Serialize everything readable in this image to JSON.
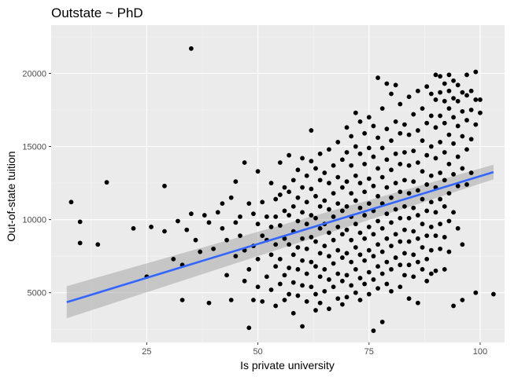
{
  "chart_data": {
    "type": "scatter",
    "title": "Outstate ~ PhD",
    "xlabel": "Is private university",
    "ylabel": "Out-of-state tuition",
    "xlim": [
      3.5,
      105.5
    ],
    "ylim": [
      1600,
      23300
    ],
    "x_ticks": [
      25,
      50,
      75,
      100
    ],
    "y_ticks": [
      5000,
      10000,
      15000,
      20000
    ],
    "x_tick_labels": [
      "25",
      "50",
      "75",
      "100"
    ],
    "y_tick_labels": [
      "5000",
      "10000",
      "15000",
      "20000"
    ],
    "grid": true,
    "legend": "none",
    "colors": {
      "panel": "#EBEBEB",
      "grid_major": "#FFFFFF",
      "grid_minor": "#F5F5F5",
      "points": "#000000",
      "fit_line": "#3366FF",
      "ribbon": "#999999"
    },
    "points": [
      [
        8,
        11200
      ],
      [
        10,
        9850
      ],
      [
        10,
        8400
      ],
      [
        14,
        8300
      ],
      [
        16,
        12550
      ],
      [
        22,
        9400
      ],
      [
        25,
        6100
      ],
      [
        26,
        9500
      ],
      [
        29,
        12300
      ],
      [
        29,
        9200
      ],
      [
        31,
        7300
      ],
      [
        32,
        9900
      ],
      [
        33,
        6900
      ],
      [
        33,
        4500
      ],
      [
        34,
        9300
      ],
      [
        35,
        21700
      ],
      [
        35,
        10400
      ],
      [
        36,
        8600
      ],
      [
        37,
        7800
      ],
      [
        38,
        10300
      ],
      [
        39,
        9800
      ],
      [
        39,
        4300
      ],
      [
        40,
        8000
      ],
      [
        41,
        10500
      ],
      [
        42,
        9400
      ],
      [
        42,
        11100
      ],
      [
        43,
        6200
      ],
      [
        43,
        8600
      ],
      [
        44,
        4500
      ],
      [
        44,
        11500
      ],
      [
        45,
        9800
      ],
      [
        45,
        7500
      ],
      [
        45,
        12600
      ],
      [
        46,
        10200
      ],
      [
        46,
        8900
      ],
      [
        47,
        13900
      ],
      [
        47,
        7900
      ],
      [
        47,
        5800
      ],
      [
        48,
        11100
      ],
      [
        48,
        6600
      ],
      [
        48,
        2600
      ],
      [
        49,
        10400
      ],
      [
        49,
        8200
      ],
      [
        49,
        4500
      ],
      [
        50,
        13300
      ],
      [
        50,
        9700
      ],
      [
        50,
        7300
      ],
      [
        50,
        5400
      ],
      [
        51,
        11200
      ],
      [
        51,
        8900
      ],
      [
        51,
        4400
      ],
      [
        52,
        10200
      ],
      [
        52,
        8600
      ],
      [
        52,
        6100
      ],
      [
        53,
        12500
      ],
      [
        53,
        9500
      ],
      [
        53,
        7600
      ],
      [
        53,
        5200
      ],
      [
        54,
        11400
      ],
      [
        54,
        10200
      ],
      [
        54,
        8300
      ],
      [
        54,
        6800
      ],
      [
        54,
        4100
      ],
      [
        55,
        13900
      ],
      [
        55,
        11700
      ],
      [
        55,
        9600
      ],
      [
        55,
        7300
      ],
      [
        55,
        5600
      ],
      [
        56,
        12200
      ],
      [
        56,
        10600
      ],
      [
        56,
        8700
      ],
      [
        56,
        6200
      ],
      [
        56,
        4500
      ],
      [
        57,
        14400
      ],
      [
        57,
        11900
      ],
      [
        57,
        10300
      ],
      [
        57,
        8300
      ],
      [
        57,
        6700
      ],
      [
        57,
        4900
      ],
      [
        58,
        12700
      ],
      [
        58,
        10900
      ],
      [
        58,
        9200
      ],
      [
        58,
        7600
      ],
      [
        58,
        5700
      ],
      [
        58,
        3600
      ],
      [
        59,
        13400
      ],
      [
        59,
        11500
      ],
      [
        59,
        9900
      ],
      [
        59,
        8100
      ],
      [
        59,
        6600
      ],
      [
        59,
        4800
      ],
      [
        60,
        14200
      ],
      [
        60,
        12200
      ],
      [
        60,
        10500
      ],
      [
        60,
        8700
      ],
      [
        60,
        7200
      ],
      [
        60,
        5500
      ],
      [
        60,
        2700
      ],
      [
        61,
        13000
      ],
      [
        61,
        11200
      ],
      [
        61,
        9700
      ],
      [
        61,
        8000
      ],
      [
        61,
        6300
      ],
      [
        61,
        4400
      ],
      [
        62,
        16100
      ],
      [
        62,
        14000
      ],
      [
        62,
        12100
      ],
      [
        62,
        10300
      ],
      [
        62,
        8800
      ],
      [
        62,
        7100
      ],
      [
        62,
        5400
      ],
      [
        63,
        13500
      ],
      [
        63,
        11600
      ],
      [
        63,
        10100
      ],
      [
        63,
        8500
      ],
      [
        63,
        6800
      ],
      [
        63,
        4900
      ],
      [
        63,
        3800
      ],
      [
        64,
        14500
      ],
      [
        64,
        12700
      ],
      [
        64,
        10900
      ],
      [
        64,
        9400
      ],
      [
        64,
        7700
      ],
      [
        64,
        6100
      ],
      [
        64,
        4300
      ],
      [
        65,
        13200
      ],
      [
        65,
        11300
      ],
      [
        65,
        9700
      ],
      [
        65,
        8200
      ],
      [
        65,
        6600
      ],
      [
        65,
        5100
      ],
      [
        66,
        14800
      ],
      [
        66,
        12500
      ],
      [
        66,
        10700
      ],
      [
        66,
        9100
      ],
      [
        66,
        7500
      ],
      [
        66,
        5900
      ],
      [
        66,
        3900
      ],
      [
        67,
        13700
      ],
      [
        67,
        11800
      ],
      [
        67,
        10200
      ],
      [
        67,
        8600
      ],
      [
        67,
        7000
      ],
      [
        67,
        5400
      ],
      [
        68,
        15300
      ],
      [
        68,
        12900
      ],
      [
        68,
        11100
      ],
      [
        68,
        9500
      ],
      [
        68,
        7900
      ],
      [
        68,
        6300
      ],
      [
        68,
        4600
      ],
      [
        69,
        14100
      ],
      [
        69,
        12200
      ],
      [
        69,
        10600
      ],
      [
        69,
        9000
      ],
      [
        69,
        7400
      ],
      [
        69,
        5800
      ],
      [
        69,
        4200
      ],
      [
        70,
        16300
      ],
      [
        70,
        14600
      ],
      [
        70,
        12600
      ],
      [
        70,
        10900
      ],
      [
        70,
        9300
      ],
      [
        70,
        7700
      ],
      [
        70,
        6200
      ],
      [
        70,
        4700
      ],
      [
        71,
        15700
      ],
      [
        71,
        13700
      ],
      [
        71,
        11800
      ],
      [
        71,
        10200
      ],
      [
        71,
        8600
      ],
      [
        71,
        7100
      ],
      [
        71,
        5500
      ],
      [
        72,
        17300
      ],
      [
        72,
        15000
      ],
      [
        72,
        13000
      ],
      [
        72,
        11300
      ],
      [
        72,
        9700
      ],
      [
        72,
        8100
      ],
      [
        72,
        6600
      ],
      [
        72,
        5000
      ],
      [
        73,
        16700
      ],
      [
        73,
        14500
      ],
      [
        73,
        12500
      ],
      [
        73,
        10800
      ],
      [
        73,
        9100
      ],
      [
        73,
        7600
      ],
      [
        73,
        6000
      ],
      [
        73,
        4500
      ],
      [
        74,
        15900
      ],
      [
        74,
        13800
      ],
      [
        74,
        11900
      ],
      [
        74,
        10300
      ],
      [
        74,
        8700
      ],
      [
        74,
        7200
      ],
      [
        74,
        5600
      ],
      [
        75,
        17000
      ],
      [
        75,
        14900
      ],
      [
        75,
        12800
      ],
      [
        75,
        11100
      ],
      [
        75,
        9500
      ],
      [
        75,
        7900
      ],
      [
        75,
        6400
      ],
      [
        75,
        4900
      ],
      [
        76,
        16400
      ],
      [
        76,
        14300
      ],
      [
        76,
        12300
      ],
      [
        76,
        10600
      ],
      [
        76,
        9000
      ],
      [
        76,
        7500
      ],
      [
        76,
        5900
      ],
      [
        76,
        2400
      ],
      [
        77,
        19700
      ],
      [
        77,
        15600
      ],
      [
        77,
        13500
      ],
      [
        77,
        11600
      ],
      [
        77,
        9900
      ],
      [
        77,
        8300
      ],
      [
        77,
        6800
      ],
      [
        77,
        5300
      ],
      [
        78,
        17600
      ],
      [
        78,
        14900
      ],
      [
        78,
        12900
      ],
      [
        78,
        11100
      ],
      [
        78,
        9400
      ],
      [
        78,
        7800
      ],
      [
        78,
        6300
      ],
      [
        78,
        3000
      ],
      [
        79,
        19300
      ],
      [
        79,
        16200
      ],
      [
        79,
        14100
      ],
      [
        79,
        12200
      ],
      [
        79,
        10400
      ],
      [
        79,
        8700
      ],
      [
        79,
        7100
      ],
      [
        79,
        5600
      ],
      [
        80,
        18600
      ],
      [
        80,
        15400
      ],
      [
        80,
        13400
      ],
      [
        80,
        11500
      ],
      [
        80,
        9800
      ],
      [
        80,
        8200
      ],
      [
        80,
        6600
      ],
      [
        80,
        5100
      ],
      [
        81,
        19200
      ],
      [
        81,
        16700
      ],
      [
        81,
        14500
      ],
      [
        81,
        12500
      ],
      [
        81,
        10700
      ],
      [
        81,
        9000
      ],
      [
        81,
        7400
      ],
      [
        82,
        17900
      ],
      [
        82,
        15900
      ],
      [
        82,
        13800
      ],
      [
        82,
        11900
      ],
      [
        82,
        10100
      ],
      [
        82,
        8500
      ],
      [
        82,
        6900
      ],
      [
        82,
        5400
      ],
      [
        83,
        16500
      ],
      [
        83,
        14600
      ],
      [
        83,
        12700
      ],
      [
        83,
        10900
      ],
      [
        83,
        9300
      ],
      [
        83,
        7700
      ],
      [
        83,
        6200
      ],
      [
        84,
        18400
      ],
      [
        84,
        15800
      ],
      [
        84,
        13700
      ],
      [
        84,
        11800
      ],
      [
        84,
        10100
      ],
      [
        84,
        8500
      ],
      [
        84,
        6900
      ],
      [
        84,
        4600
      ],
      [
        85,
        17200
      ],
      [
        85,
        14700
      ],
      [
        85,
        12600
      ],
      [
        85,
        10800
      ],
      [
        85,
        9200
      ],
      [
        85,
        7600
      ],
      [
        85,
        6100
      ],
      [
        86,
        18800
      ],
      [
        86,
        16100
      ],
      [
        86,
        13900
      ],
      [
        86,
        12000
      ],
      [
        86,
        10300
      ],
      [
        86,
        8700
      ],
      [
        86,
        7100
      ],
      [
        86,
        4300
      ],
      [
        87,
        17600
      ],
      [
        87,
        15400
      ],
      [
        87,
        13300
      ],
      [
        87,
        11400
      ],
      [
        87,
        9700
      ],
      [
        87,
        8100
      ],
      [
        87,
        6600
      ],
      [
        88,
        19100
      ],
      [
        88,
        16600
      ],
      [
        88,
        14400
      ],
      [
        88,
        12400
      ],
      [
        88,
        10600
      ],
      [
        88,
        8900
      ],
      [
        88,
        7300
      ],
      [
        88,
        5800
      ],
      [
        89,
        18600
      ],
      [
        89,
        17100
      ],
      [
        89,
        15000
      ],
      [
        89,
        13000
      ],
      [
        89,
        11200
      ],
      [
        89,
        9500
      ],
      [
        89,
        7900
      ],
      [
        89,
        6300
      ],
      [
        90,
        19900
      ],
      [
        90,
        18200
      ],
      [
        90,
        16300
      ],
      [
        90,
        14200
      ],
      [
        90,
        12200
      ],
      [
        90,
        10500
      ],
      [
        90,
        8900
      ],
      [
        90,
        6500
      ],
      [
        91,
        19800
      ],
      [
        91,
        18700
      ],
      [
        91,
        17100
      ],
      [
        91,
        15300
      ],
      [
        91,
        13200
      ],
      [
        91,
        11400
      ],
      [
        91,
        9700
      ],
      [
        91,
        8000
      ],
      [
        92,
        19300
      ],
      [
        92,
        18100
      ],
      [
        92,
        16600
      ],
      [
        92,
        14600
      ],
      [
        92,
        12700
      ],
      [
        92,
        10900
      ],
      [
        92,
        8800
      ],
      [
        92,
        6600
      ],
      [
        93,
        19900
      ],
      [
        93,
        18800
      ],
      [
        93,
        17600
      ],
      [
        93,
        15800
      ],
      [
        93,
        13800
      ],
      [
        93,
        11800
      ],
      [
        93,
        9900
      ],
      [
        93,
        7800
      ],
      [
        94,
        19500
      ],
      [
        94,
        18300
      ],
      [
        94,
        17000
      ],
      [
        94,
        15200
      ],
      [
        94,
        13100
      ],
      [
        94,
        10500
      ],
      [
        94,
        4100
      ],
      [
        95,
        19200
      ],
      [
        95,
        18100
      ],
      [
        95,
        16400
      ],
      [
        95,
        14300
      ],
      [
        95,
        12300
      ],
      [
        95,
        9400
      ],
      [
        96,
        18700
      ],
      [
        96,
        17400
      ],
      [
        96,
        15700
      ],
      [
        96,
        13500
      ],
      [
        96,
        8300
      ],
      [
        96,
        4500
      ],
      [
        97,
        19900
      ],
      [
        97,
        18500
      ],
      [
        97,
        16800
      ],
      [
        97,
        14800
      ],
      [
        97,
        12400
      ],
      [
        98,
        18800
      ],
      [
        98,
        17500
      ],
      [
        98,
        15500
      ],
      [
        98,
        13200
      ],
      [
        99,
        20100
      ],
      [
        99,
        18200
      ],
      [
        99,
        16500
      ],
      [
        99,
        5000
      ],
      [
        100,
        18200
      ],
      [
        100,
        17300
      ],
      [
        103,
        4900
      ]
    ],
    "fit": {
      "method": "linear",
      "x": [
        7,
        103
      ],
      "y": [
        4350,
        13250
      ],
      "ci_lower": [
        3250,
        12750
      ],
      "ci_upper": [
        5450,
        13750
      ]
    }
  }
}
